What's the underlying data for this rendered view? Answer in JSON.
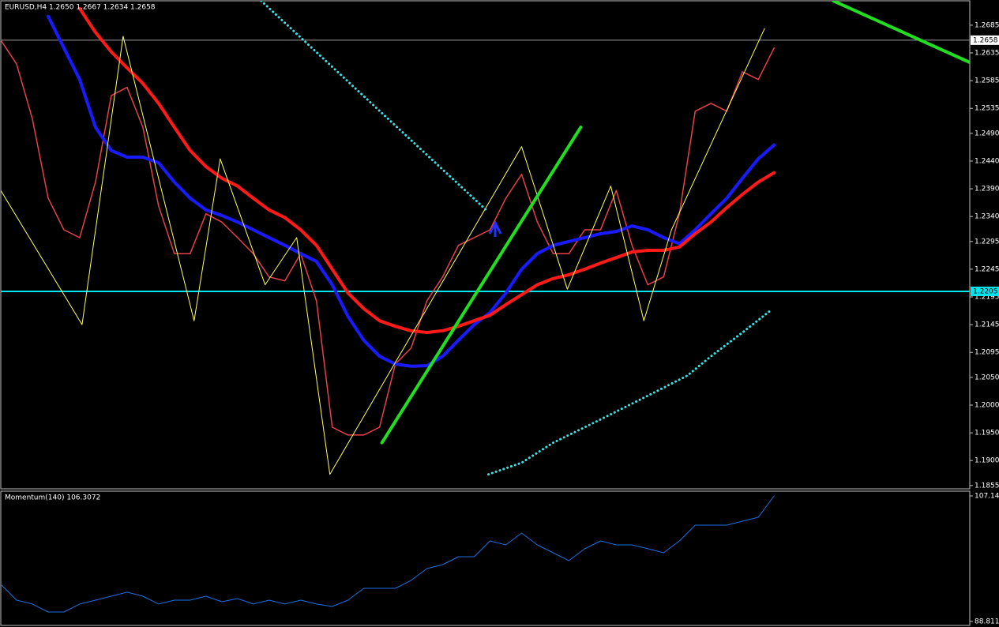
{
  "chart_data": [
    {
      "type": "line",
      "title": "EURUSD,H4  1.2650 1.2667 1.2634 1.2658",
      "xlim": [
        0,
        61.4
      ],
      "ylim": [
        1.1849,
        1.2729
      ],
      "yticks": [
        1.2685,
        1.2635,
        1.2585,
        1.2535,
        {
          "value": 1.249,
          "label": "1.2490"
        },
        {
          "value": 1.244,
          "label": "1.2440"
        },
        {
          "value": 1.239,
          "label": "1.2390"
        },
        {
          "value": 1.234,
          "label": "1.2340"
        },
        1.2295,
        1.2245,
        1.2195,
        1.2145,
        1.2095,
        {
          "value": 1.205,
          "label": "1.2050"
        },
        {
          "value": 1.2,
          "label": "1.2000"
        },
        {
          "value": 1.195,
          "label": "1.1950"
        },
        {
          "value": 1.19,
          "label": "1.1900"
        },
        1.1855
      ],
      "x": [
        0,
        1,
        2,
        3,
        4,
        5,
        6,
        7,
        8,
        9,
        10,
        11,
        12,
        13,
        14,
        15,
        16,
        17,
        18,
        19,
        20,
        21,
        22,
        23,
        24,
        25,
        26,
        27,
        28,
        29,
        30,
        31,
        32,
        33,
        34,
        35,
        36,
        37,
        38,
        39,
        40,
        41,
        42,
        43,
        44,
        45,
        46,
        47,
        48,
        49
      ],
      "level": {
        "value": 1.2205,
        "color": "#00e5ee"
      },
      "last_price": {
        "value": 1.2658,
        "color": "#9a9a9a"
      },
      "series": [
        {
          "color": "#e8404a",
          "width": 1.5,
          "style": "solid",
          "values": [
            1.2658,
            1.2615,
            1.2516,
            1.2373,
            1.2316,
            1.2302,
            1.2402,
            1.2558,
            1.2573,
            1.2501,
            1.2359,
            1.2273,
            1.2273,
            1.2345,
            1.233,
            1.2302,
            1.2273,
            1.2231,
            1.2224,
            1.2273,
            1.2188,
            1.196,
            1.1946,
            1.1946,
            1.196,
            1.2074,
            1.2103,
            1.2188,
            1.2231,
            1.2288,
            1.2302,
            1.2316,
            1.2373,
            1.2416,
            1.233,
            1.2273,
            1.2273,
            1.2316,
            1.2316,
            1.2387,
            1.2288,
            1.2217,
            1.2231,
            1.2345,
            1.253,
            1.2544,
            1.253,
            1.2601,
            1.2587,
            1.2644
          ]
        },
        {
          "color": "#1a1aff",
          "width": 4,
          "style": "solid",
          "values": [
            null,
            null,
            null,
            1.2701,
            1.2644,
            1.2587,
            1.2501,
            1.2459,
            1.2447,
            1.2447,
            1.2437,
            1.2402,
            1.2373,
            1.2352,
            1.2342,
            1.233,
            1.2316,
            1.2302,
            1.2288,
            1.2273,
            1.2259,
            1.2217,
            1.216,
            1.2117,
            1.2088,
            1.2074,
            1.207,
            1.2071,
            1.2088,
            1.2117,
            1.2145,
            1.2167,
            1.2202,
            1.2245,
            1.2273,
            1.2288,
            1.2295,
            1.2302,
            1.2309,
            1.2313,
            1.2323,
            1.2316,
            1.2302,
            1.2291,
            1.2316,
            1.2345,
            1.2373,
            1.2409,
            1.2444,
            1.2469
          ]
        },
        {
          "color": "#ff1a1a",
          "width": 4,
          "style": "solid",
          "values": [
            null,
            null,
            null,
            null,
            null,
            1.2715,
            1.2672,
            1.2637,
            1.2608,
            1.258,
            1.2544,
            1.2501,
            1.2459,
            1.243,
            1.2409,
            1.2395,
            1.2373,
            1.2352,
            1.2338,
            1.2316,
            1.2288,
            1.2245,
            1.2202,
            1.2174,
            1.2152,
            1.2142,
            1.2134,
            1.2131,
            1.2134,
            1.2142,
            1.2152,
            1.2162,
            1.2181,
            1.2199,
            1.2217,
            1.2228,
            1.2235,
            1.2245,
            1.2256,
            1.2266,
            1.2276,
            1.2279,
            1.2279,
            1.2285,
            1.2309,
            1.233,
            1.2356,
            1.238,
            1.2402,
            1.2419
          ]
        },
        {
          "color": "#ffff66",
          "width": 1,
          "style": "solid",
          "x": [
            0,
            5.15,
            7.75,
            12.25,
            13.9,
            16.75,
            18.75,
            20.85,
            33,
            35.9,
            38.65,
            40.75,
            42.5,
            48.4
          ],
          "values": [
            1.2387,
            1.2145,
            1.2665,
            1.2152,
            1.2444,
            1.2217,
            1.2302,
            1.1875,
            1.2466,
            1.2209,
            1.2395,
            1.2152,
            1.2316,
            1.2679
          ]
        },
        {
          "color": "#40e0e0",
          "width": 3,
          "style": "dotted",
          "x": [
            16.5,
            30.75,
            30.8,
            30.9,
            33,
            35,
            38,
            41.5,
            43.5,
            45,
            47,
            48.75
          ],
          "values": [
            1.2729,
            1.2352,
            null,
            1.1875,
            1.1896,
            1.1932,
            1.1974,
            1.2024,
            1.2053,
            1.2088,
            1.2131,
            1.217
          ]
        },
        {
          "color": "#22dd22",
          "width": 4,
          "style": "solid",
          "x": [
            24.15,
            36.75
          ],
          "values": [
            1.1932,
            1.2501
          ]
        },
        {
          "color": "#22dd22",
          "width": 4,
          "style": "solid",
          "x": [
            52.75,
            61.4
          ],
          "values": [
            1.2729,
            1.2618
          ]
        }
      ]
    },
    {
      "type": "line",
      "title": "Momentum(140) 106.3072",
      "xlim": [
        0,
        61.4
      ],
      "ylim": [
        88.23,
        107.83
      ],
      "yticks": [
        {
          "value": 107.14,
          "label": "107.140"
        },
        88.811
      ],
      "x": [
        0,
        1,
        2,
        3,
        4,
        5,
        6,
        7,
        8,
        9,
        10,
        11,
        12,
        13,
        14,
        15,
        16,
        17,
        18,
        19,
        20,
        21,
        22,
        23,
        24,
        25,
        26,
        27,
        28,
        29,
        30,
        31,
        32,
        33,
        34,
        35,
        36,
        37,
        38,
        39,
        40,
        41,
        42,
        43,
        44,
        45,
        46,
        47,
        48,
        49
      ],
      "series": [
        {
          "color": "#1e6fe0",
          "width": 1,
          "style": "solid",
          "values": [
            94.23,
            91.92,
            91.35,
            90.19,
            90.19,
            91.35,
            91.92,
            92.5,
            93.08,
            92.5,
            91.35,
            91.92,
            91.92,
            92.5,
            91.69,
            92.15,
            91.35,
            91.92,
            91.35,
            91.92,
            91.35,
            91.0,
            91.92,
            93.65,
            93.65,
            93.65,
            94.81,
            96.53,
            97.11,
            98.26,
            98.26,
            100.57,
            99.99,
            101.72,
            99.99,
            98.84,
            97.69,
            99.42,
            100.57,
            99.99,
            99.99,
            99.42,
            98.84,
            100.57,
            102.87,
            102.87,
            102.87,
            103.45,
            104.03,
            107.14
          ]
        }
      ]
    }
  ]
}
